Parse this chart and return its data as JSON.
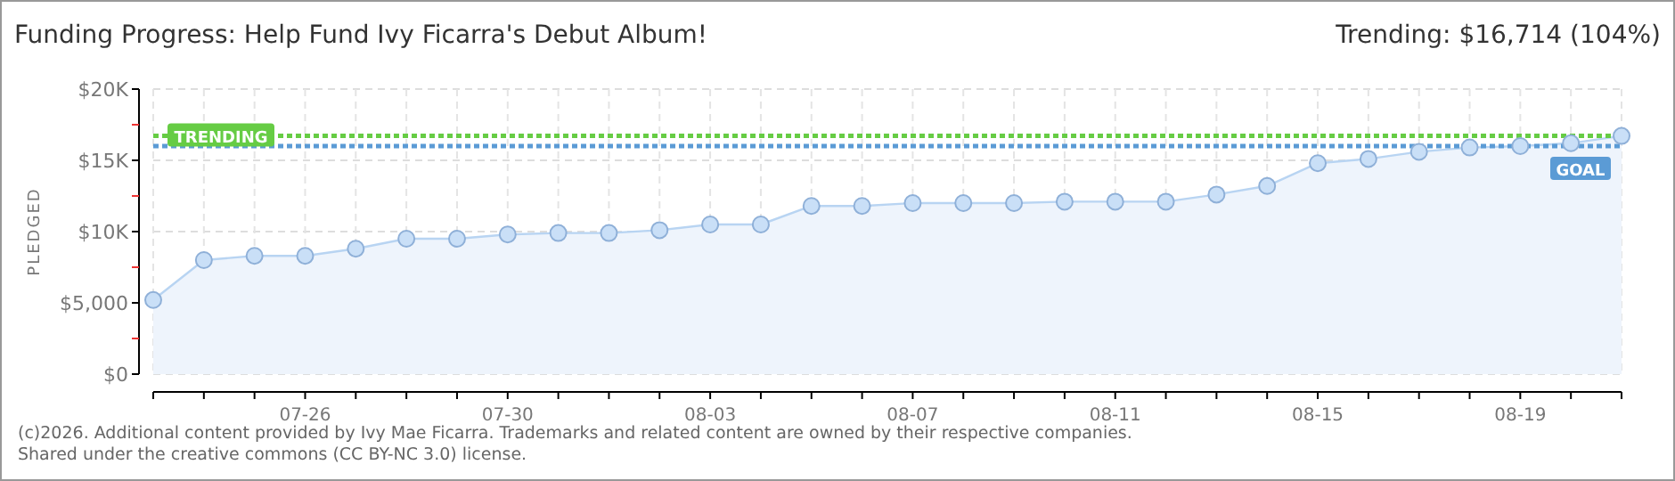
{
  "chart_data": {
    "type": "area",
    "title": "Funding Progress: Help Fund Ivy Ficarra's Debut Album!",
    "subtitle": "Trending: $16,714 (104%)",
    "ylabel": "PLEDGED",
    "categories": [
      null,
      null,
      null,
      "07-26",
      null,
      null,
      null,
      "07-30",
      null,
      null,
      null,
      "08-03",
      null,
      null,
      null,
      "08-07",
      null,
      null,
      null,
      "08-11",
      null,
      null,
      null,
      "08-15",
      null,
      null,
      null,
      "08-19",
      null,
      null
    ],
    "series": [
      {
        "color": "#b8d4f2",
        "values": [
          5200,
          8000,
          8300,
          8300,
          8800,
          9500,
          9500,
          9800,
          9900,
          9900,
          10100,
          10500,
          10500,
          11800,
          11800,
          12000,
          12000,
          12000,
          12100,
          12100,
          12100,
          12600,
          13200,
          14800,
          15100,
          15600,
          15900,
          16000,
          16200,
          16714
        ]
      }
    ],
    "ylim": [
      0,
      20000
    ],
    "yticks": [
      {
        "value": 0,
        "label": "$0"
      },
      {
        "value": 2500,
        "label": null
      },
      {
        "value": 5000,
        "label": "$5,000"
      },
      {
        "value": 7500,
        "label": null
      },
      {
        "value": 10000,
        "label": "$10K"
      },
      {
        "value": 12500,
        "label": null
      },
      {
        "value": 15000,
        "label": "$15K"
      },
      {
        "value": 17500,
        "label": null
      },
      {
        "value": 20000,
        "label": "$20K"
      }
    ],
    "ref_lines": [
      {
        "axis": "y",
        "value": 16714,
        "label": "TRENDING",
        "color": "#66cc44",
        "line_style": "dotted"
      },
      {
        "axis": "y",
        "value": 16000,
        "label": "GOAL",
        "color": "#5b9bd5",
        "line_style": "dotted"
      }
    ],
    "grid": true,
    "marker": "circle",
    "annotations": [
      "(c)2026. Additional content provided by Ivy Mae Ficarra. Trademarks and related content are owned by their respective companies.",
      "Shared under the creative commons (CC BY-NC 3.0) license."
    ]
  }
}
